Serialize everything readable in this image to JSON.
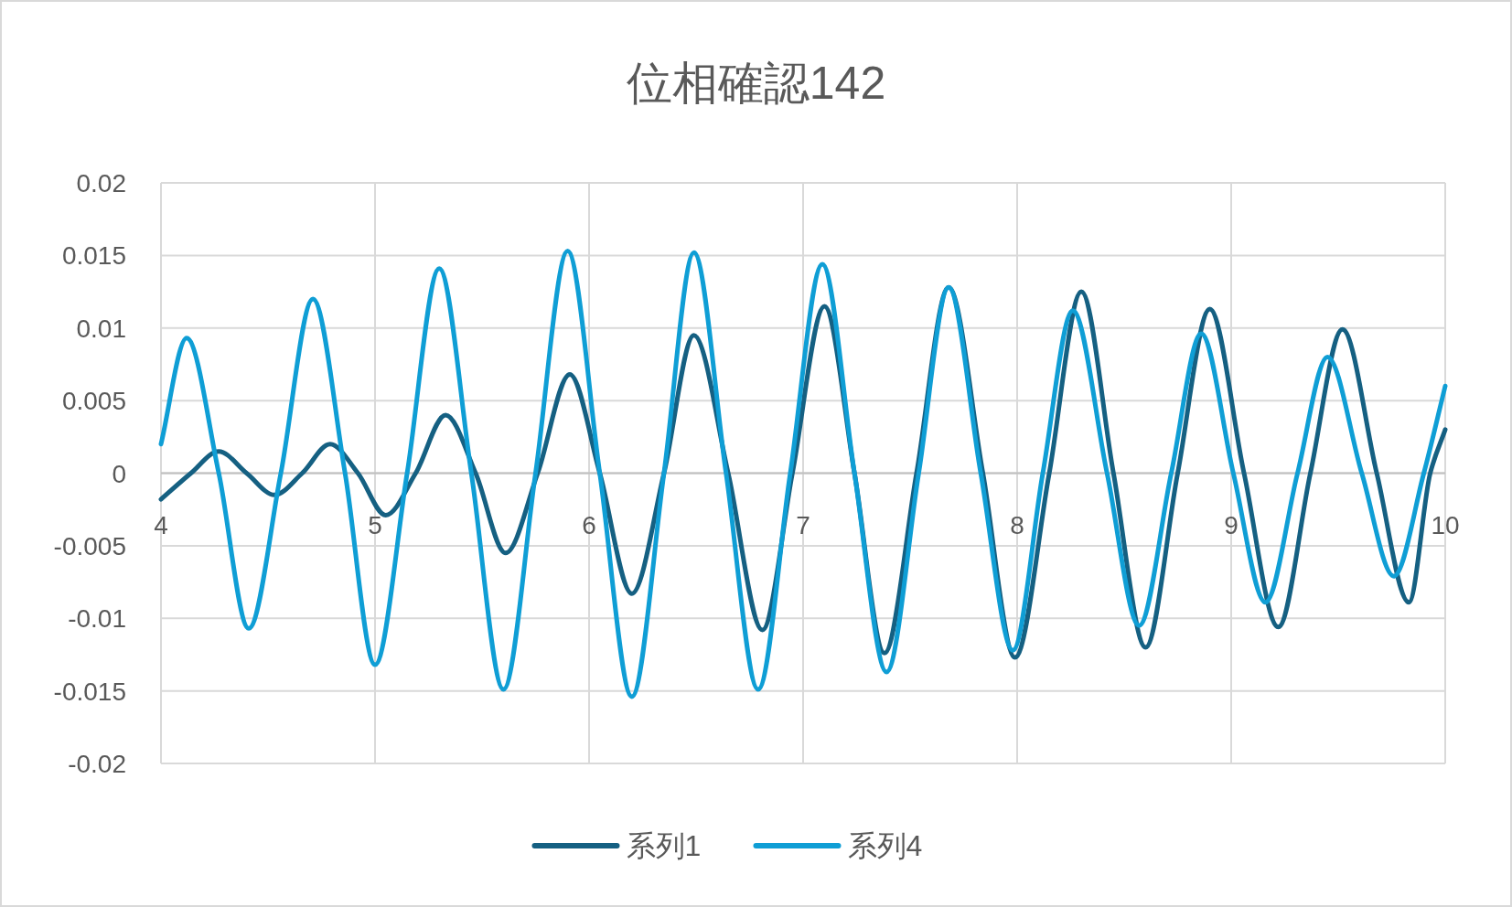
{
  "chart_data": {
    "type": "line",
    "title": "位相確認142",
    "xlim": [
      4,
      10
    ],
    "xticks": [
      4,
      5,
      6,
      7,
      8,
      9,
      10
    ],
    "ylim": [
      -0.02,
      0.02
    ],
    "yticks": [
      -0.02,
      -0.015,
      -0.01,
      -0.005,
      0,
      0.005,
      0.01,
      0.015,
      0.02
    ],
    "grid": true,
    "legend": "bottom",
    "series": [
      {
        "name": "系列1",
        "color": "#156082",
        "x": [
          4.0,
          4.14,
          4.27,
          4.4,
          4.53,
          4.66,
          4.79,
          4.92,
          5.05,
          5.19,
          5.33,
          5.47,
          5.61,
          5.76,
          5.91,
          6.05,
          6.2,
          6.35,
          6.49,
          6.65,
          6.81,
          6.95,
          7.1,
          7.24,
          7.38,
          7.53,
          7.68,
          7.84,
          7.99,
          8.15,
          8.3,
          8.45,
          8.6,
          8.75,
          8.9,
          9.06,
          9.22,
          9.37,
          9.52,
          9.68,
          9.83,
          9.93,
          10.0
        ],
        "values": [
          -0.0018,
          0,
          0.0015,
          0,
          -0.0015,
          0,
          0.002,
          0,
          -0.0029,
          0,
          0.004,
          0,
          -0.0055,
          0,
          0.0068,
          0,
          -0.0083,
          0,
          0.0095,
          0,
          -0.0108,
          0,
          0.0115,
          0,
          -0.0124,
          0,
          0.0128,
          0,
          -0.0127,
          0,
          0.0125,
          0,
          -0.012,
          0,
          0.0113,
          0,
          -0.0106,
          0,
          0.0099,
          0,
          -0.0089,
          0,
          0.003
        ]
      },
      {
        "name": "系列4",
        "color": "#0f9ed5",
        "x": [
          4.0,
          4.12,
          4.27,
          4.41,
          4.56,
          4.71,
          4.86,
          5.0,
          5.15,
          5.3,
          5.45,
          5.6,
          5.75,
          5.9,
          6.05,
          6.2,
          6.35,
          6.49,
          6.64,
          6.79,
          6.94,
          7.09,
          7.24,
          7.39,
          7.54,
          7.68,
          7.83,
          7.98,
          8.12,
          8.26,
          8.42,
          8.57,
          8.72,
          8.86,
          9.01,
          9.16,
          9.31,
          9.45,
          9.61,
          9.76,
          9.9,
          10.0
        ],
        "values": [
          0.002,
          0.0093,
          0,
          -0.0107,
          0,
          0.012,
          0,
          -0.0132,
          0,
          0.0141,
          0,
          -0.0149,
          0,
          0.0153,
          0,
          -0.0154,
          0,
          0.0152,
          0,
          -0.0149,
          0,
          0.0144,
          0,
          -0.0137,
          0,
          0.0128,
          0,
          -0.0122,
          0,
          0.0112,
          0,
          -0.0105,
          0,
          0.0096,
          0,
          -0.0089,
          0,
          0.008,
          0,
          -0.0071,
          0,
          0.006
        ]
      }
    ]
  }
}
